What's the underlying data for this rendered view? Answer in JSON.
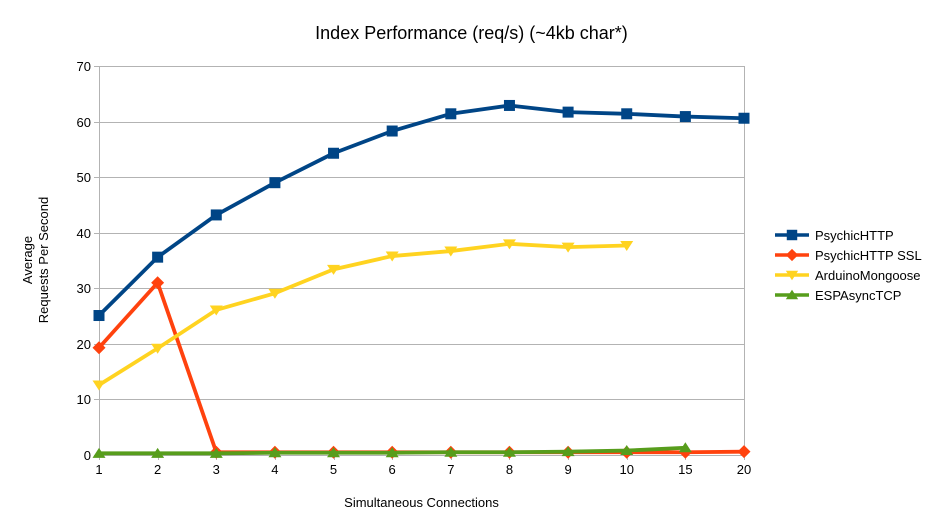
{
  "chart": {
    "title": "Index Performance (req/s) (~4kb char*)"
  },
  "chart_data": {
    "type": "line",
    "title": "Index Performance (req/s) (~4kb char*)",
    "categories": [
      "1",
      "2",
      "3",
      "4",
      "5",
      "6",
      "7",
      "8",
      "9",
      "10",
      "15",
      "20"
    ],
    "xlabel": "Simultaneous Connections",
    "ylabel": "Average Requests Per Second",
    "ylabel_lines": [
      "Average",
      "Requests Per Second"
    ],
    "ylim": [
      0,
      70
    ],
    "yticks": [
      0,
      10,
      20,
      30,
      40,
      50,
      60,
      70
    ],
    "grid": "horizontal",
    "legend_position": "right",
    "series": [
      {
        "name": "PsychicHTTP",
        "color": "#004586",
        "marker": "square",
        "values": [
          25.1,
          35.6,
          43.2,
          49.0,
          54.3,
          58.3,
          61.4,
          62.9,
          61.7,
          61.4,
          60.9,
          60.6
        ]
      },
      {
        "name": "PsychicHTTP SSL",
        "color": "#FF420E",
        "marker": "diamond",
        "values": [
          19.3,
          31.0,
          0.5,
          0.5,
          0.5,
          0.5,
          0.5,
          0.5,
          0.5,
          0.5,
          0.5,
          0.6
        ]
      },
      {
        "name": "ArduinoMongoose",
        "color": "#FFD320",
        "marker": "triangle-down",
        "values": [
          12.6,
          19.2,
          26.1,
          29.1,
          33.4,
          35.8,
          36.7,
          38.0,
          37.4,
          37.7
        ]
      },
      {
        "name": "ESPAsyncTCP",
        "color": "#579D1C",
        "marker": "triangle-up",
        "values": [
          0.3,
          0.3,
          0.3,
          0.4,
          0.4,
          0.4,
          0.5,
          0.5,
          0.6,
          0.8,
          1.3
        ]
      }
    ],
    "colors": {
      "grid": "#b3b3b3",
      "axis": "#b3b3b3",
      "text": "#000000",
      "background": "#ffffff"
    }
  }
}
